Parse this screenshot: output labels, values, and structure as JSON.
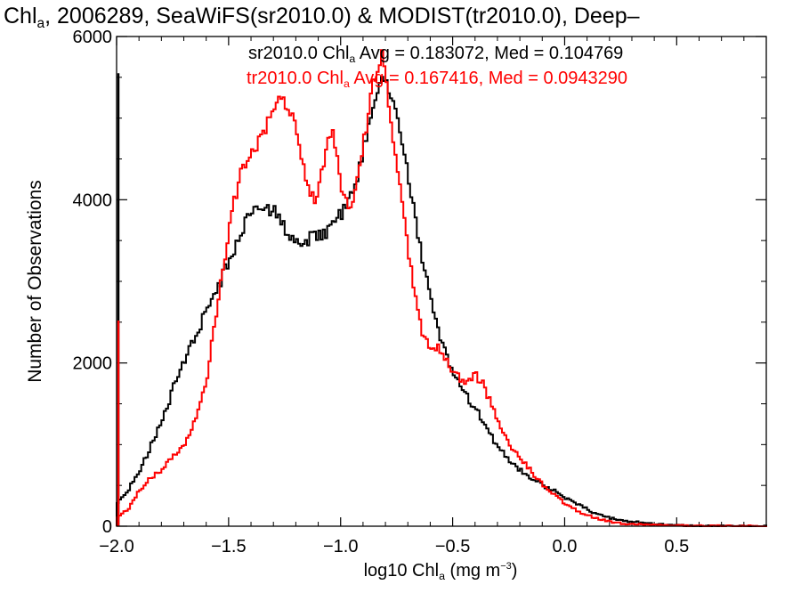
{
  "chart_data": {
    "type": "line",
    "style": "step-histogram",
    "title": {
      "prefix": "Chl",
      "subscript": "a",
      "rest": ", 2006289, SeaWiFS(sr2010.0) & MODIST(tr2010.0), Deep–"
    },
    "xlabel": {
      "prefix": "log10 Chl",
      "subscript": "a",
      "units_start": " (mg m",
      "superscript": "−3",
      "units_end": ")"
    },
    "ylabel": "Number of Observations",
    "xlim": [
      -2.0,
      0.9
    ],
    "ylim": [
      0,
      6000
    ],
    "x_ticks": [
      -2.0,
      -1.5,
      -1.0,
      -0.5,
      0.0,
      0.5
    ],
    "x_tick_labels": [
      "−2.0",
      "−1.5",
      "−1.0",
      "−0.5",
      "0.0",
      "0.5"
    ],
    "y_ticks": [
      0,
      2000,
      4000,
      6000
    ],
    "y_tick_labels": [
      "0",
      "2000",
      "4000",
      "6000"
    ],
    "grid": false,
    "series": [
      {
        "stat": {
          "prefix": "sr2010.0 Chl",
          "subscript": "a",
          "rest": " Avg = 0.183072, Med = 0.104769"
        },
        "color": "#000000",
        "spike": {
          "x": -2.0,
          "y": 5550
        },
        "points": [
          [
            -2.0,
            280
          ],
          [
            -1.95,
            460
          ],
          [
            -1.9,
            680
          ],
          [
            -1.85,
            1000
          ],
          [
            -1.8,
            1300
          ],
          [
            -1.75,
            1700
          ],
          [
            -1.7,
            2050
          ],
          [
            -1.65,
            2350
          ],
          [
            -1.6,
            2650
          ],
          [
            -1.55,
            2950
          ],
          [
            -1.5,
            3250
          ],
          [
            -1.47,
            3450
          ],
          [
            -1.44,
            3650
          ],
          [
            -1.41,
            3800
          ],
          [
            -1.38,
            3880
          ],
          [
            -1.35,
            3950
          ],
          [
            -1.32,
            3850
          ],
          [
            -1.3,
            3900
          ],
          [
            -1.27,
            3700
          ],
          [
            -1.24,
            3600
          ],
          [
            -1.2,
            3500
          ],
          [
            -1.17,
            3480
          ],
          [
            -1.14,
            3520
          ],
          [
            -1.1,
            3550
          ],
          [
            -1.07,
            3600
          ],
          [
            -1.04,
            3700
          ],
          [
            -1.0,
            3850
          ],
          [
            -0.97,
            4000
          ],
          [
            -0.94,
            4200
          ],
          [
            -0.91,
            4550
          ],
          [
            -0.88,
            4900
          ],
          [
            -0.85,
            5200
          ],
          [
            -0.82,
            5500
          ],
          [
            -0.8,
            5450
          ],
          [
            -0.78,
            5300
          ],
          [
            -0.75,
            5000
          ],
          [
            -0.72,
            4600
          ],
          [
            -0.69,
            4100
          ],
          [
            -0.66,
            3600
          ],
          [
            -0.63,
            3150
          ],
          [
            -0.6,
            2750
          ],
          [
            -0.57,
            2400
          ],
          [
            -0.54,
            2150
          ],
          [
            -0.51,
            1950
          ],
          [
            -0.48,
            1800
          ],
          [
            -0.45,
            1650
          ],
          [
            -0.42,
            1500
          ],
          [
            -0.39,
            1380
          ],
          [
            -0.36,
            1250
          ],
          [
            -0.33,
            1100
          ],
          [
            -0.3,
            960
          ],
          [
            -0.25,
            800
          ],
          [
            -0.2,
            680
          ],
          [
            -0.15,
            580
          ],
          [
            -0.1,
            500
          ],
          [
            -0.05,
            430
          ],
          [
            0.0,
            350
          ],
          [
            0.05,
            280
          ],
          [
            0.1,
            200
          ],
          [
            0.15,
            140
          ],
          [
            0.2,
            100
          ],
          [
            0.25,
            70
          ],
          [
            0.3,
            55
          ],
          [
            0.35,
            40
          ],
          [
            0.4,
            25
          ],
          [
            0.45,
            15
          ],
          [
            0.5,
            8
          ],
          [
            0.6,
            4
          ],
          [
            0.7,
            2
          ],
          [
            0.8,
            1
          ],
          [
            0.9,
            0
          ]
        ]
      },
      {
        "stat": {
          "prefix": "tr2010.0 Chl",
          "subscript": "a",
          "rest": " Avg = 0.167416, Med = 0.0943290"
        },
        "color": "#ff0000",
        "spike": {
          "x": -2.0,
          "y": 2520
        },
        "points": [
          [
            -2.0,
            120
          ],
          [
            -1.95,
            220
          ],
          [
            -1.9,
            450
          ],
          [
            -1.85,
            600
          ],
          [
            -1.8,
            700
          ],
          [
            -1.75,
            860
          ],
          [
            -1.7,
            1020
          ],
          [
            -1.65,
            1350
          ],
          [
            -1.6,
            1850
          ],
          [
            -1.57,
            2400
          ],
          [
            -1.54,
            2950
          ],
          [
            -1.51,
            3500
          ],
          [
            -1.48,
            4000
          ],
          [
            -1.45,
            4300
          ],
          [
            -1.42,
            4450
          ],
          [
            -1.39,
            4600
          ],
          [
            -1.36,
            4750
          ],
          [
            -1.33,
            4950
          ],
          [
            -1.3,
            5100
          ],
          [
            -1.27,
            5250
          ],
          [
            -1.24,
            5150
          ],
          [
            -1.21,
            4900
          ],
          [
            -1.18,
            4500
          ],
          [
            -1.15,
            4200
          ],
          [
            -1.12,
            4000
          ],
          [
            -1.09,
            4300
          ],
          [
            -1.06,
            4700
          ],
          [
            -1.04,
            4850
          ],
          [
            -1.02,
            4600
          ],
          [
            -1.0,
            4100
          ],
          [
            -0.97,
            3950
          ],
          [
            -0.94,
            4050
          ],
          [
            -0.91,
            4550
          ],
          [
            -0.88,
            5050
          ],
          [
            -0.86,
            5400
          ],
          [
            -0.84,
            5650
          ],
          [
            -0.82,
            5750
          ],
          [
            -0.8,
            5450
          ],
          [
            -0.78,
            4900
          ],
          [
            -0.76,
            4600
          ],
          [
            -0.73,
            3950
          ],
          [
            -0.7,
            3300
          ],
          [
            -0.67,
            2750
          ],
          [
            -0.64,
            2400
          ],
          [
            -0.61,
            2250
          ],
          [
            -0.58,
            2200
          ],
          [
            -0.55,
            2100
          ],
          [
            -0.52,
            1950
          ],
          [
            -0.49,
            1850
          ],
          [
            -0.46,
            1800
          ],
          [
            -0.43,
            1780
          ],
          [
            -0.4,
            1850
          ],
          [
            -0.37,
            1750
          ],
          [
            -0.34,
            1550
          ],
          [
            -0.31,
            1350
          ],
          [
            -0.28,
            1150
          ],
          [
            -0.25,
            1000
          ],
          [
            -0.2,
            820
          ],
          [
            -0.15,
            660
          ],
          [
            -0.1,
            500
          ],
          [
            -0.05,
            380
          ],
          [
            0.0,
            270
          ],
          [
            0.05,
            190
          ],
          [
            0.1,
            130
          ],
          [
            0.15,
            90
          ],
          [
            0.2,
            55
          ],
          [
            0.25,
            35
          ],
          [
            0.3,
            22
          ],
          [
            0.4,
            12
          ],
          [
            0.5,
            6
          ],
          [
            0.7,
            2
          ],
          [
            0.9,
            0
          ]
        ]
      }
    ]
  }
}
